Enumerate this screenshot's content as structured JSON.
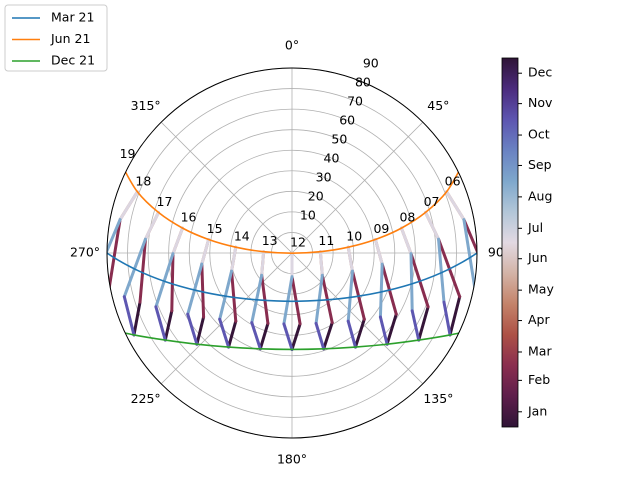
{
  "chart_data": {
    "type": "polar",
    "rlim": [
      0,
      90
    ],
    "rticks": [
      10,
      20,
      30,
      40,
      50,
      60,
      70,
      80,
      90
    ],
    "thetaticks": [
      {
        "value": 0,
        "label": "0°"
      },
      {
        "value": 45,
        "label": "45°"
      },
      {
        "value": 90,
        "label": "90°"
      },
      {
        "value": 135,
        "label": "135°"
      },
      {
        "value": 180,
        "label": "180°"
      },
      {
        "value": 225,
        "label": "225°"
      },
      {
        "value": 270,
        "label": "270°"
      },
      {
        "value": 315,
        "label": "315°"
      }
    ],
    "grid": true,
    "legend": "upper left",
    "series": [
      {
        "name": "Mar 21",
        "color": "#1f77b4",
        "x": [
          83.9,
          90,
          96.1,
          103.0,
          111.7,
          124.6,
          146.1,
          180,
          213.9,
          235.4,
          248.3,
          257.0,
          263.9,
          270,
          276.1
        ],
        "values": [
          103.7,
          90,
          76.3,
          62.7,
          49.6,
          37.4,
          27.6,
          23.5,
          27.6,
          37.4,
          49.6,
          62.7,
          76.3,
          90,
          103.7
        ]
      },
      {
        "name": "Jun 21",
        "color": "#ff7f0e",
        "x": [
          62.6,
          68.4,
          73.1,
          77.2,
          80.8,
          84.1,
          87.4,
          180,
          272.6,
          275.9,
          279.2,
          282.8,
          286.9,
          291.6,
          297.4
        ],
        "values": [
          93.4,
          80.9,
          67.9,
          54.6,
          41.1,
          27.5,
          13.8,
          0.1,
          13.8,
          27.5,
          41.1,
          54.6,
          67.9,
          80.9,
          93.4
        ]
      },
      {
        "name": "Dec 21",
        "color": "#2ca02c",
        "x": [
          111.6,
          117.4,
          124.5,
          133.8,
          146.0,
          161.7,
          180,
          198.3,
          214.0,
          226.2,
          235.5,
          242.6,
          248.4
        ],
        "values": [
          99.1,
          86.6,
          74.8,
          64.1,
          55.2,
          49.1,
          46.9,
          49.1,
          55.2,
          64.1,
          74.8,
          86.6,
          99.1
        ]
      }
    ],
    "analemmas": [
      {
        "label": "06",
        "x": [
          111.6,
          98.7,
          79.0,
          68.4,
          79.0,
          101.6,
          111.6
        ],
        "values": [
          99.1,
          97.8,
          85.2,
          80.9,
          85.2,
          91.0,
          99.1
        ],
        "c": [
          -10,
          45,
          105,
          172,
          228,
          288,
          345
        ]
      },
      {
        "label": "07",
        "x": [
          117.4,
          104.6,
          84.6,
          73.1,
          84.6,
          107.9,
          117.4
        ],
        "values": [
          86.6,
          84.3,
          71.6,
          67.9,
          71.6,
          77.7,
          86.6
        ],
        "c": [
          -10,
          45,
          105,
          172,
          228,
          288,
          345
        ]
      },
      {
        "label": "08",
        "x": [
          124.5,
          111.6,
          90.3,
          77.2,
          90.3,
          115.7,
          124.5
        ],
        "values": [
          74.8,
          71.2,
          57.9,
          54.6,
          57.9,
          64.9,
          74.8
        ],
        "c": [
          -10,
          45,
          105,
          172,
          228,
          288,
          345
        ]
      },
      {
        "label": "09",
        "x": [
          133.8,
          120.4,
          97.0,
          80.8,
          97.0,
          125.9,
          133.8
        ],
        "values": [
          64.1,
          58.8,
          44.2,
          41.1,
          44.2,
          53.1,
          64.1
        ],
        "c": [
          -10,
          45,
          105,
          172,
          228,
          288,
          345
        ]
      },
      {
        "label": "10",
        "x": [
          146.0,
          132.5,
          106.7,
          84.1,
          106.7,
          140.5,
          146.0
        ],
        "values": [
          55.2,
          47.7,
          30.7,
          27.5,
          30.7,
          43.0,
          55.2
        ],
        "c": [
          -10,
          45,
          105,
          172,
          228,
          288,
          345
        ]
      },
      {
        "label": "11",
        "x": [
          161.7,
          150.0,
          126.3,
          87.4,
          126.3,
          161.1,
          161.7
        ],
        "values": [
          49.1,
          39.1,
          18.3,
          13.8,
          18.3,
          36.2,
          49.1
        ],
        "c": [
          -10,
          45,
          105,
          172,
          228,
          288,
          345
        ]
      },
      {
        "label": "12",
        "x": [
          180,
          173.5,
          180,
          180,
          180,
          186.5,
          180
        ],
        "values": [
          46.9,
          34.7,
          11.5,
          0.1,
          11.5,
          34.7,
          46.9
        ],
        "c": [
          -10,
          45,
          105,
          172,
          228,
          288,
          345
        ]
      },
      {
        "label": "13",
        "x": [
          198.3,
          198.9,
          233.7,
          272.6,
          233.7,
          210.0,
          198.3
        ],
        "values": [
          49.1,
          36.2,
          18.3,
          13.8,
          18.3,
          39.1,
          49.1
        ],
        "c": [
          -10,
          45,
          105,
          172,
          228,
          288,
          345
        ]
      },
      {
        "label": "14",
        "x": [
          214.0,
          219.5,
          253.3,
          275.9,
          253.3,
          227.5,
          214.0
        ],
        "values": [
          55.2,
          43.0,
          30.7,
          27.5,
          30.7,
          47.7,
          55.2
        ],
        "c": [
          -10,
          45,
          105,
          172,
          228,
          288,
          345
        ]
      },
      {
        "label": "15",
        "x": [
          226.2,
          234.1,
          263.0,
          279.2,
          263.0,
          239.6,
          226.2
        ],
        "values": [
          64.1,
          53.1,
          44.2,
          41.1,
          44.2,
          58.8,
          64.1
        ],
        "c": [
          -10,
          45,
          105,
          172,
          228,
          288,
          345
        ]
      },
      {
        "label": "16",
        "x": [
          235.5,
          244.3,
          269.7,
          282.8,
          269.7,
          248.4,
          235.5
        ],
        "values": [
          74.8,
          64.9,
          57.9,
          54.6,
          57.9,
          71.2,
          74.8
        ],
        "c": [
          -10,
          45,
          105,
          172,
          228,
          288,
          345
        ]
      },
      {
        "label": "17",
        "x": [
          242.6,
          252.1,
          275.4,
          286.9,
          275.4,
          255.4,
          242.6
        ],
        "values": [
          86.6,
          77.7,
          71.6,
          67.9,
          71.6,
          84.3,
          86.6
        ],
        "c": [
          -10,
          45,
          105,
          172,
          228,
          288,
          345
        ]
      },
      {
        "label": "18",
        "x": [
          248.4,
          258.4,
          281.0,
          291.6,
          281.0,
          261.3,
          248.4
        ],
        "values": [
          99.1,
          91.0,
          85.2,
          80.9,
          85.2,
          97.8,
          99.1
        ],
        "c": [
          -10,
          45,
          105,
          172,
          228,
          288,
          345
        ]
      },
      {
        "label": "19",
        "x": [
          253.1,
          264.2,
          287.2,
          297.4,
          287.2,
          267.0,
          253.1
        ],
        "values": [
          112.1,
          104.6,
          98.6,
          93.4,
          98.6,
          111.4,
          112.1
        ],
        "c": [
          -10,
          45,
          105,
          172,
          228,
          288,
          345
        ]
      }
    ],
    "colorbar": {
      "lim": [
        -14,
        350
      ],
      "ticks": [
        {
          "value": 1,
          "label": "Jan"
        },
        {
          "value": 32,
          "label": "Feb"
        },
        {
          "value": 60,
          "label": "Mar"
        },
        {
          "value": 91,
          "label": "Apr"
        },
        {
          "value": 121,
          "label": "May"
        },
        {
          "value": 152,
          "label": "Jun"
        },
        {
          "value": 182,
          "label": "Jul"
        },
        {
          "value": 213,
          "label": "Aug"
        },
        {
          "value": 244,
          "label": "Sep"
        },
        {
          "value": 274,
          "label": "Oct"
        },
        {
          "value": 305,
          "label": "Nov"
        },
        {
          "value": 335,
          "label": "Dec"
        }
      ],
      "colors": [
        "#2f1436",
        "#5e1e4b",
        "#8a2e4f",
        "#ad5146",
        "#c4836a",
        "#d3b3a6",
        "#e2d9e2",
        "#b2c6d8",
        "#7ea7cc",
        "#6a82c2",
        "#5d55b0",
        "#4b2b7d",
        "#2f1436"
      ]
    }
  }
}
